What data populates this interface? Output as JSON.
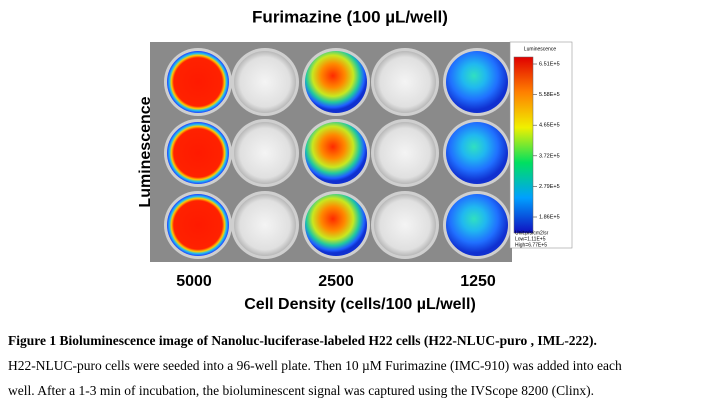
{
  "figure": {
    "title": "Furimazine (100 µL/well)",
    "y_label": "Luminescence",
    "column_labels": [
      "5000",
      "2500",
      "1250"
    ],
    "x_label": "Cell Density (cells/100 µL/well)",
    "colorbar": {
      "title": "Luminescence",
      "ticks": [
        "6.51E+5",
        "5.58E+5",
        "4.65E+5",
        "3.72E+5",
        "2.79E+5",
        "1.86E+5"
      ],
      "unit": "Unit:p/s/cm2/sr",
      "low": "Low=1.11E+5",
      "high": "High=6.77E+5"
    }
  },
  "caption": {
    "heading": "Figure 1 Bioluminescence image of Nanoluc-luciferase-labeled H22 cells (H22-NLUC-puro , IML-222).",
    "lines": [
      "H22-NLUC-puro cells were seeded into a 96-well plate. Then 10  µM Furimazine (IMC-910) was added into each",
      "well. After a 1-3 min of incubation, the bioluminescent signal was captured using the IVScope 8200 (Clinx)."
    ]
  }
}
